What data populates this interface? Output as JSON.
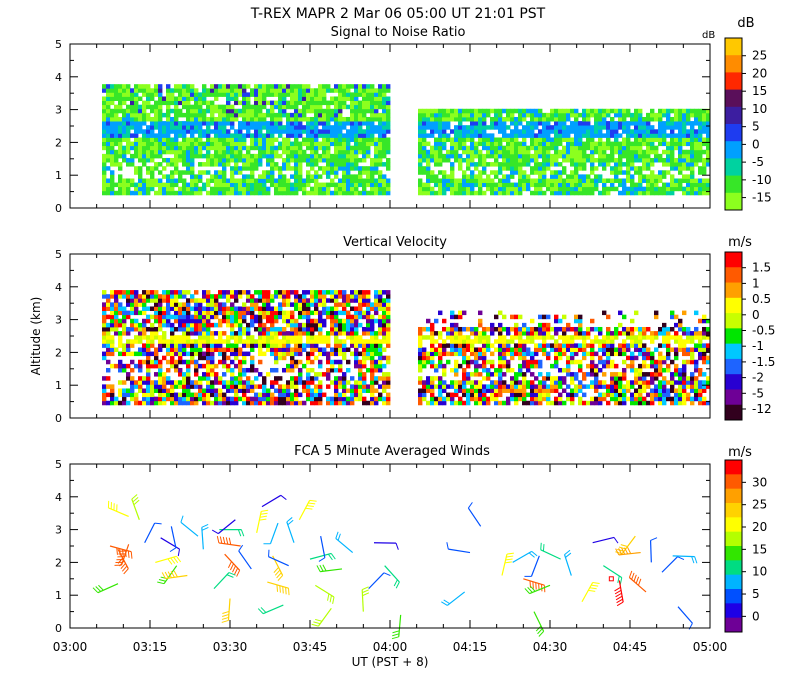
{
  "header": {
    "title": "T-REX   MAPR   2 Mar 06   05:00 UT   21:01   PST"
  },
  "chart_data": [
    {
      "type": "heatmap",
      "title": "Signal to Noise Ratio",
      "ylabel": "",
      "ylim": [
        0,
        5
      ],
      "yticks": [
        "0",
        "1",
        "2",
        "3",
        "4",
        "5"
      ],
      "xlim": [
        "03:00",
        "05:00"
      ],
      "colorbar": {
        "unit": "dB",
        "labels": [
          "25",
          "20",
          "15",
          "10",
          "5",
          "0",
          "-5",
          "-10",
          "-15"
        ],
        "colors": [
          "#ffc800",
          "#ff8c00",
          "#ff2800",
          "#5a0f5a",
          "#3c1ea0",
          "#1e3cf0",
          "#00a0ff",
          "#00d2a0",
          "#37e628",
          "#8cff1e"
        ]
      },
      "data_gap": [
        "04:00",
        "04:05"
      ],
      "extra_annotation": "dB"
    },
    {
      "type": "heatmap",
      "title": "Vertical Velocity",
      "ylabel": "Altitude (km)",
      "ylim": [
        0,
        5
      ],
      "yticks": [
        "0",
        "1",
        "2",
        "3",
        "4",
        "5"
      ],
      "xlim": [
        "03:00",
        "05:00"
      ],
      "colorbar": {
        "unit": "m/s",
        "labels": [
          "1.5",
          "1",
          "0.5",
          "0",
          "-0.5",
          "-1",
          "-1.5",
          "-2",
          "-5",
          "-12"
        ],
        "colors": [
          "#ff0000",
          "#ff5a00",
          "#ffa000",
          "#ffff00",
          "#c8ff00",
          "#00e600",
          "#00c8ff",
          "#1e64ff",
          "#2800d2",
          "#6e0096",
          "#32001e"
        ]
      },
      "data_gap": [
        "04:00",
        "04:05"
      ]
    },
    {
      "type": "scatter",
      "title": "FCA 5 Minute Averaged Winds",
      "ylim": [
        0,
        5
      ],
      "yticks": [
        "0",
        "1",
        "2",
        "3",
        "4",
        "5"
      ],
      "xlabel": "UT  (PST + 8)",
      "xticks": [
        "03:00",
        "03:15",
        "03:30",
        "03:45",
        "04:00",
        "04:15",
        "04:30",
        "04:45",
        "05:00"
      ],
      "colorbar": {
        "unit": "m/s",
        "labels": [
          "30",
          "25",
          "20",
          "15",
          "10",
          "5",
          "0"
        ],
        "colors": [
          "#ff0000",
          "#ff5a00",
          "#ffa000",
          "#ffd200",
          "#ffff00",
          "#b4ff00",
          "#32e600",
          "#00dc82",
          "#00b4ff",
          "#0050ff",
          "#1e00e6",
          "#6e0096"
        ]
      },
      "barbs": [
        {
          "t": 7.5,
          "alt": 2.5,
          "spd": 28
        },
        {
          "t": 9,
          "alt": 2.4,
          "spd": 27
        },
        {
          "t": 11,
          "alt": 2.55,
          "spd": 28
        },
        {
          "t": 9,
          "alt": 1.35,
          "spd": 14
        },
        {
          "t": 11,
          "alt": 3.4,
          "spd": 18
        },
        {
          "t": 13,
          "alt": 3.3,
          "spd": 16
        },
        {
          "t": 14,
          "alt": 2.6,
          "spd": 6
        },
        {
          "t": 16,
          "alt": 2.0,
          "spd": 18
        },
        {
          "t": 17,
          "alt": 2.75,
          "spd": 3
        },
        {
          "t": 19,
          "alt": 3.1,
          "spd": 5
        },
        {
          "t": 20,
          "alt": 1.9,
          "spd": 14
        },
        {
          "t": 22,
          "alt": 1.6,
          "spd": 23
        },
        {
          "t": 24,
          "alt": 2.8,
          "spd": 7
        },
        {
          "t": 25,
          "alt": 2.4,
          "spd": 9
        },
        {
          "t": 27,
          "alt": 1.2,
          "spd": 12
        },
        {
          "t": 28,
          "alt": 3.0,
          "spd": 11
        },
        {
          "t": 29,
          "alt": 2.25,
          "spd": 26
        },
        {
          "t": 30,
          "alt": 0.9,
          "spd": 22
        },
        {
          "t": 31,
          "alt": 3.3,
          "spd": 4
        },
        {
          "t": 32,
          "alt": 2.5,
          "spd": 27
        },
        {
          "t": 34,
          "alt": 1.8,
          "spd": 5
        },
        {
          "t": 35,
          "alt": 2.9,
          "spd": 19
        },
        {
          "t": 36,
          "alt": 3.7,
          "spd": 4
        },
        {
          "t": 37,
          "alt": 1.4,
          "spd": 23
        },
        {
          "t": 38,
          "alt": 2.2,
          "spd": 21
        },
        {
          "t": 39,
          "alt": 3.2,
          "spd": 7
        },
        {
          "t": 40,
          "alt": 0.7,
          "spd": 10
        },
        {
          "t": 41,
          "alt": 1.9,
          "spd": 6
        },
        {
          "t": 42,
          "alt": 2.6,
          "spd": 8
        },
        {
          "t": 43,
          "alt": 3.3,
          "spd": 19
        },
        {
          "t": 45,
          "alt": 2.1,
          "spd": 11
        },
        {
          "t": 46,
          "alt": 1.3,
          "spd": 16
        },
        {
          "t": 47,
          "alt": 2.8,
          "spd": 5
        },
        {
          "t": 49,
          "alt": 0.6,
          "spd": 17
        },
        {
          "t": 51,
          "alt": 1.8,
          "spd": 13
        },
        {
          "t": 53,
          "alt": 2.3,
          "spd": 8
        },
        {
          "t": 55,
          "alt": 0.5,
          "spd": 16
        },
        {
          "t": 56,
          "alt": 1.2,
          "spd": 6
        },
        {
          "t": 57,
          "alt": 2.6,
          "spd": 3
        },
        {
          "t": 59,
          "alt": 1.9,
          "spd": 12
        },
        {
          "t": 62,
          "alt": 0.4,
          "spd": 14
        },
        {
          "t": 74,
          "alt": 1.1,
          "spd": 9
        },
        {
          "t": 75,
          "alt": 2.3,
          "spd": 6
        },
        {
          "t": 77,
          "alt": 3.1,
          "spd": 5
        },
        {
          "t": 81,
          "alt": 1.6,
          "spd": 20
        },
        {
          "t": 83,
          "alt": 2.0,
          "spd": 8
        },
        {
          "t": 85,
          "alt": 1.5,
          "spd": 28
        },
        {
          "t": 87,
          "alt": 0.5,
          "spd": 14
        },
        {
          "t": 88,
          "alt": 2.2,
          "spd": 6
        },
        {
          "t": 90,
          "alt": 1.3,
          "spd": 15
        },
        {
          "t": 92,
          "alt": 2.1,
          "spd": 10
        },
        {
          "t": 94,
          "alt": 1.6,
          "spd": 8
        },
        {
          "t": 96,
          "alt": 0.8,
          "spd": 19
        },
        {
          "t": 98,
          "alt": 2.6,
          "spd": 4
        },
        {
          "t": 100,
          "alt": 1.9,
          "spd": 12
        },
        {
          "t": 103,
          "alt": 1.45,
          "spd": 30
        },
        {
          "t": 106,
          "alt": 2.8,
          "spd": 22
        },
        {
          "t": 107,
          "alt": 2.3,
          "spd": 24
        },
        {
          "t": 108,
          "alt": 1.1,
          "spd": 26
        },
        {
          "t": 109,
          "alt": 2.0,
          "spd": 5
        },
        {
          "t": 111,
          "alt": 1.7,
          "spd": 6
        },
        {
          "t": 113,
          "alt": 2.2,
          "spd": 9
        },
        {
          "t": 114,
          "alt": 0.65,
          "spd": 5
        }
      ],
      "square_marker": {
        "t": 101.5,
        "alt": 1.5,
        "spd": 30
      }
    }
  ]
}
